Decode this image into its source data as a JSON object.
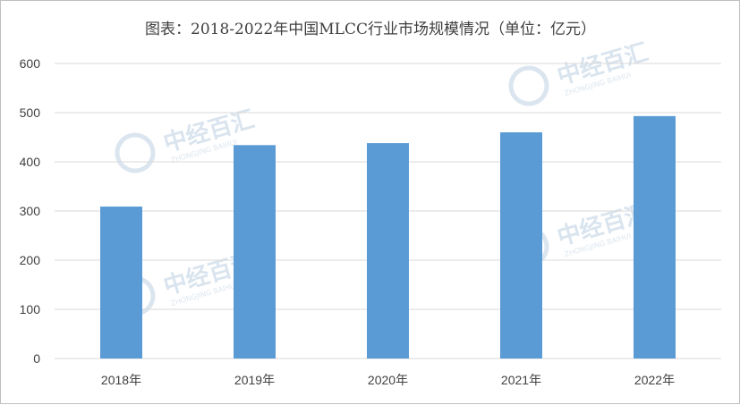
{
  "chart_data": {
    "type": "bar",
    "title": "图表：2018-2022年中国MLCC行业市场规模情况（单位：亿元）",
    "categories": [
      "2018年",
      "2019年",
      "2020年",
      "2021年",
      "2022年"
    ],
    "values": [
      309,
      434,
      438,
      460,
      493
    ],
    "ylim": [
      0,
      600
    ],
    "yticks": [
      0,
      100,
      200,
      300,
      400,
      500,
      600
    ],
    "grid": true,
    "bar_color": "#5b9bd5",
    "grid_color": "#d9d9d9",
    "watermark": {
      "text": "中经百汇",
      "subtext": "ZHONGJING BAIHUI"
    }
  }
}
